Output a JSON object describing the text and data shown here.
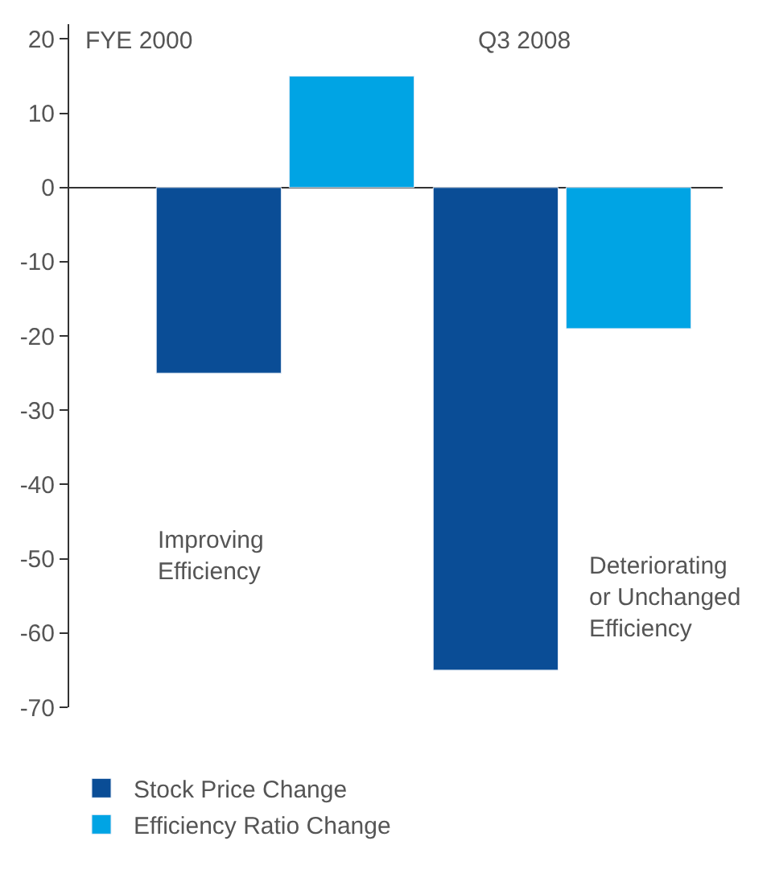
{
  "chart_data": {
    "type": "bar",
    "categories": [
      null,
      null
    ],
    "series": [
      {
        "name": "Stock Price Change",
        "color": "#0a4d96",
        "values": [
          -25,
          -65
        ]
      },
      {
        "name": "Efficiency Ratio Change",
        "color": "#00a4e4",
        "values": [
          15,
          -19
        ]
      }
    ],
    "ylim": [
      -70,
      22
    ],
    "yticks": [
      20,
      10,
      0,
      -10,
      -20,
      -30,
      -40,
      -50,
      -60,
      -70
    ],
    "annotations": [
      "FYE 2000",
      "Q3 2008",
      "Improving\nEfficiency",
      "Deteriorating\nor Unchanged\nEfficiency"
    ],
    "legend": "bottom"
  }
}
